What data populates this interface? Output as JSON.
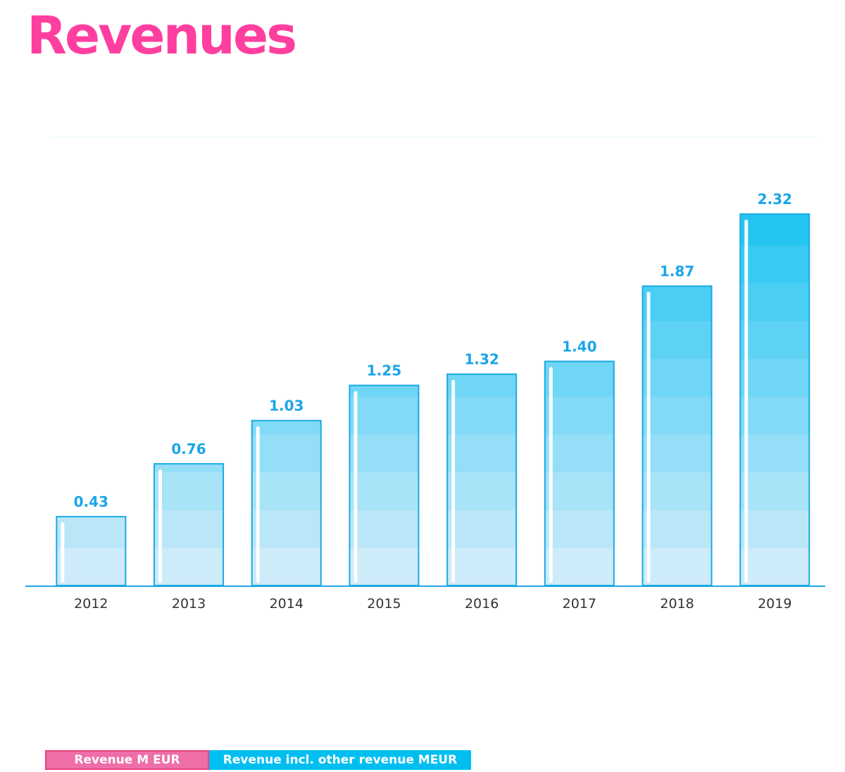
{
  "colors": {
    "title": "#ff3fa0",
    "bar_border": "#1aa9e6",
    "bar_top": "#00bdf0",
    "bar_bottom": "#cdebf9",
    "label": "#1aa5e8",
    "axis": "#1aa9e6",
    "tick_text": "#333333",
    "legend_revenue": "#f06ea8",
    "legend_other": "#00bff0"
  },
  "chart_data": {
    "type": "bar",
    "title": "Revenues",
    "categories": [
      "2012",
      "2013",
      "2014",
      "2015",
      "2016",
      "2017",
      "2018",
      "2019"
    ],
    "series": [
      {
        "name": "Revenue incl. other revenue MEUR",
        "values": [
          0.43,
          0.76,
          1.03,
          1.25,
          1.32,
          1.4,
          1.87,
          2.32
        ],
        "labels": [
          "0.43",
          "0.76",
          "1.03",
          "1.25",
          "1.32",
          "1.40",
          "1.87",
          "2.32"
        ]
      }
    ],
    "xlabel": "",
    "ylabel": "",
    "ylim": [
      0,
      2.8
    ],
    "grid": false,
    "legend_placement": "bottom-left",
    "legend": [
      "Revenue M EUR",
      "Revenue incl. other revenue MEUR"
    ]
  }
}
